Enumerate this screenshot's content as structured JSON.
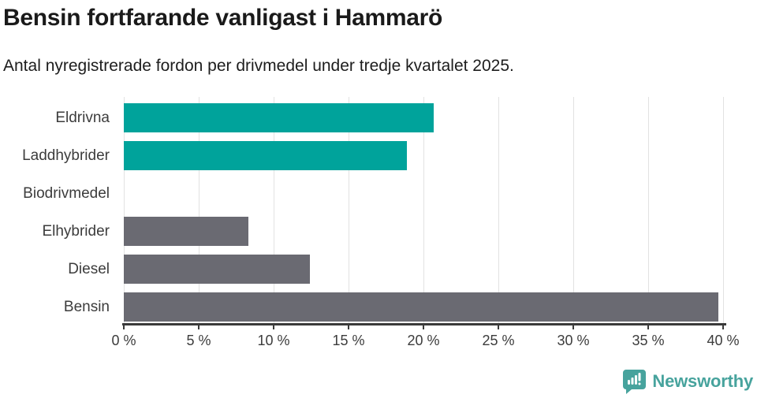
{
  "chart_data": {
    "type": "bar",
    "orientation": "horizontal",
    "title": "Bensin fortfarande vanligast i Hammarö",
    "subtitle": "Antal nyregistrerade fordon per drivmedel under tredje kvartalet 2025.",
    "categories": [
      "Eldrivna",
      "Laddhybrider",
      "Biodrivmedel",
      "Elhybrider",
      "Diesel",
      "Bensin"
    ],
    "values": [
      20.7,
      18.9,
      0,
      8.3,
      12.4,
      39.7
    ],
    "bar_colors": [
      "#00a39b",
      "#00a39b",
      "#00a39b",
      "#6a6a72",
      "#6a6a72",
      "#6a6a72"
    ],
    "xlabel": "",
    "ylabel": "",
    "xlim": [
      0,
      40
    ],
    "x_ticks": [
      0,
      5,
      10,
      15,
      20,
      25,
      30,
      35,
      40
    ],
    "x_tick_labels": [
      "0 %",
      "5 %",
      "10 %",
      "15 %",
      "20 %",
      "25 %",
      "30 %",
      "35 %",
      "40 %"
    ],
    "grid": "vertical",
    "legend": "none"
  },
  "colors": {
    "accent_teal": "#00a39b",
    "neutral_gray": "#6a6a72",
    "axis": "#3a3a3a",
    "gridline": "#e2e2e2",
    "logo_teal": "#47a39d"
  },
  "footer": {
    "brand": "Newsworthy"
  }
}
